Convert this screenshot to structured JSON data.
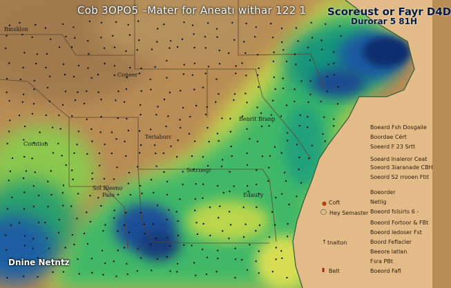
{
  "header": {
    "title": "Cob  3OPO5  –Mater for Aneatı withar 122  1",
    "subtitle_right": "Scoreust or Fayr D4D",
    "subtitle_right_2": "Durorar 5 81H"
  },
  "map_labels": {
    "tl": "Bmsklon",
    "center_top": "Coneer",
    "center": "Teriaborc",
    "right_center": "Benrit Branp",
    "left": "Corntion",
    "mid_bottom": "Sotrnegr",
    "lower_left_1": "Sol Bleeno",
    "lower_left_2": "Pass",
    "lower_right": "Edaury"
  },
  "bottom_left_label": "Dnine Netntz",
  "legend": {
    "items": [
      "Boeard Fsh Dosgaile",
      "Boordae Cért",
      "Soeerd F 23 Srtt",
      "Soeard Inaleror Ceat",
      "Soeord 3iaranade CBH",
      "Soeord  S2 rrooen Ftit",
      "Boeorder",
      "Netlig",
      "Boeord fslsirts 6 -",
      "Boeord Fortoor & FBt",
      "Boeord ledoser Fst",
      "Boord Feflacler",
      "Beeore latlan",
      "Fsra PBt",
      "Boeord Fafl"
    ],
    "markers": {
      "coft": "Coft",
      "hey_semaster": "Hey Semaster",
      "talton": "tnalton",
      "belt": "Belt"
    }
  },
  "colors": {
    "land_dry": "#b98c55",
    "ocean": "#e2b884",
    "green": "#36b56a",
    "yellow_green": "#c6d64a",
    "teal": "#15987b",
    "blue": "#1f4f9a",
    "navy": "#10306f",
    "border_line": "#7a5c3a"
  }
}
